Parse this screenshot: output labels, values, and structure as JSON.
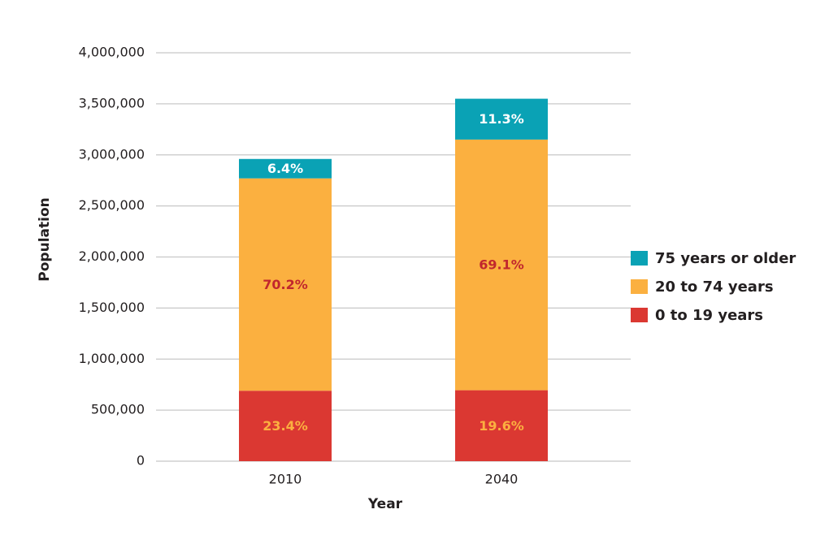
{
  "chart_data": {
    "type": "stacked_bar",
    "x_label": "Year",
    "y_label": "Population",
    "categories": [
      "2010",
      "2040"
    ],
    "series": [
      {
        "name": "0 to 19 years",
        "color": "#db3832",
        "label_color": "#fbb040",
        "values": [
          690000,
          695000
        ],
        "share_labels": [
          "23.4%",
          "19.6%"
        ]
      },
      {
        "name": "20 to 74 years",
        "color": "#fbb040",
        "label_color": "#c1272d",
        "values": [
          2080000,
          2455000
        ],
        "share_labels": [
          "70.2%",
          "69.1%"
        ]
      },
      {
        "name": "75 years or older",
        "color": "#0aa2b5",
        "label_color": "#ffffff",
        "values": [
          190000,
          400000
        ],
        "share_labels": [
          "6.4%",
          "11.3%"
        ]
      }
    ],
    "ylim": [
      0,
      4000000
    ],
    "yticks": [
      0,
      {
        "value": 500000,
        "label": "500,000"
      },
      {
        "value": 1000000,
        "label": "1,000,000"
      },
      {
        "value": 1500000,
        "label": "1,500,000"
      },
      {
        "value": 2000000,
        "label": "2,000,000"
      },
      {
        "value": 2500000,
        "label": "2,500,000"
      },
      {
        "value": 3000000,
        "label": "3,000,000"
      },
      {
        "value": 3500000,
        "label": "3,500,000"
      },
      {
        "value": 4000000,
        "label": "4,000,000"
      }
    ],
    "grid": true,
    "legend": "right"
  }
}
